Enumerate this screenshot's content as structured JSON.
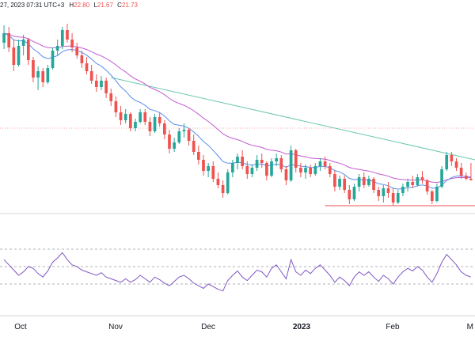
{
  "header": {
    "datetime": "27, 2023 07:31 UTC+3",
    "high_label": "H",
    "high_value": "22.80",
    "low_label": "L",
    "low_value": "21.67",
    "close_label": "C",
    "close_value": "21.73"
  },
  "colors": {
    "up": "#26a69a",
    "down": "#ef5350",
    "ma_fast": "#5b8def",
    "ma_slow": "#c45ad2",
    "trendline": "#6bc6b0",
    "support": "#ef5350",
    "rsi": "#7e57c2",
    "grid": "#9598a1",
    "axis_text": "#131722"
  },
  "chart_data": [
    {
      "type": "candlestick",
      "title": "",
      "x_tick_labels": [
        "Oct",
        "Nov",
        "Dec",
        "2023",
        "Feb",
        "M"
      ],
      "ylim": [
        20.0,
        32.0
      ],
      "grid": false,
      "overlays": [
        "moving-average-fast",
        "moving-average-slow",
        "descending-trendline",
        "support-line",
        "price-level-line"
      ],
      "candles": [
        [
          30.4,
          31.5,
          30.0,
          31.0
        ],
        [
          31.0,
          31.4,
          29.8,
          30.1
        ],
        [
          30.1,
          30.6,
          28.6,
          29.0
        ],
        [
          29.0,
          30.6,
          28.9,
          30.2
        ],
        [
          30.2,
          30.9,
          29.6,
          30.6
        ],
        [
          30.6,
          30.7,
          29.0,
          29.3
        ],
        [
          29.3,
          29.5,
          27.9,
          28.2
        ],
        [
          28.2,
          28.9,
          27.4,
          28.6
        ],
        [
          28.6,
          28.8,
          27.6,
          27.9
        ],
        [
          27.9,
          29.0,
          27.8,
          28.8
        ],
        [
          28.8,
          30.1,
          28.7,
          29.9
        ],
        [
          29.9,
          30.6,
          29.6,
          30.2
        ],
        [
          30.2,
          31.4,
          30.0,
          31.2
        ],
        [
          31.2,
          31.6,
          30.4,
          30.6
        ],
        [
          30.6,
          31.0,
          29.8,
          30.1
        ],
        [
          30.1,
          30.4,
          29.4,
          29.6
        ],
        [
          29.6,
          29.9,
          28.8,
          29.1
        ],
        [
          29.1,
          29.5,
          28.4,
          28.6
        ],
        [
          28.6,
          29.0,
          27.8,
          28.0
        ],
        [
          28.0,
          28.4,
          27.3,
          27.6
        ],
        [
          27.6,
          28.3,
          27.4,
          28.0
        ],
        [
          28.0,
          28.2,
          26.9,
          27.2
        ],
        [
          27.2,
          27.5,
          26.4,
          26.7
        ],
        [
          26.7,
          27.0,
          25.7,
          26.0
        ],
        [
          26.0,
          26.4,
          25.2,
          25.5
        ],
        [
          25.5,
          26.2,
          25.3,
          25.9
        ],
        [
          25.9,
          26.0,
          24.8,
          25.0
        ],
        [
          25.0,
          25.6,
          24.8,
          25.4
        ],
        [
          25.4,
          26.2,
          25.3,
          26.0
        ],
        [
          26.0,
          26.2,
          25.2,
          25.4
        ],
        [
          25.4,
          25.7,
          24.5,
          24.8
        ],
        [
          24.8,
          25.9,
          24.7,
          25.7
        ],
        [
          25.7,
          26.0,
          25.1,
          25.3
        ],
        [
          25.3,
          25.5,
          24.3,
          24.6
        ],
        [
          24.6,
          24.9,
          23.4,
          23.7
        ],
        [
          23.7,
          24.4,
          23.5,
          24.1
        ],
        [
          24.1,
          25.0,
          24.0,
          24.8
        ],
        [
          24.8,
          25.3,
          24.4,
          24.9
        ],
        [
          24.9,
          25.0,
          23.9,
          24.2
        ],
        [
          24.2,
          24.6,
          23.3,
          23.5
        ],
        [
          23.5,
          23.9,
          22.7,
          23.0
        ],
        [
          23.0,
          23.3,
          22.0,
          22.3
        ],
        [
          22.3,
          22.8,
          21.9,
          22.6
        ],
        [
          22.6,
          22.9,
          21.6,
          21.8
        ],
        [
          21.8,
          22.2,
          21.2,
          21.4
        ],
        [
          21.4,
          21.7,
          20.6,
          20.9
        ],
        [
          20.9,
          22.4,
          20.8,
          22.2
        ],
        [
          22.2,
          23.0,
          21.9,
          22.8
        ],
        [
          22.8,
          23.4,
          22.4,
          23.2
        ],
        [
          23.2,
          23.6,
          22.4,
          22.6
        ],
        [
          22.6,
          22.9,
          21.8,
          22.1
        ],
        [
          22.1,
          22.7,
          21.9,
          22.5
        ],
        [
          22.5,
          23.3,
          22.3,
          23.0
        ],
        [
          23.0,
          23.4,
          22.5,
          22.8
        ],
        [
          22.8,
          22.9,
          21.7,
          22.0
        ],
        [
          22.0,
          23.1,
          21.9,
          22.9
        ],
        [
          22.9,
          23.4,
          22.6,
          23.1
        ],
        [
          23.1,
          23.3,
          22.2,
          22.4
        ],
        [
          22.4,
          22.6,
          21.4,
          21.7
        ],
        [
          21.7,
          23.9,
          21.6,
          23.6
        ],
        [
          23.6,
          23.7,
          22.2,
          22.5
        ],
        [
          22.5,
          22.8,
          21.9,
          22.2
        ],
        [
          22.2,
          22.7,
          21.8,
          22.5
        ],
        [
          22.5,
          22.7,
          21.9,
          22.1
        ],
        [
          22.1,
          22.8,
          22.0,
          22.6
        ],
        [
          22.6,
          23.1,
          22.3,
          22.9
        ],
        [
          22.9,
          23.2,
          22.4,
          22.6
        ],
        [
          22.6,
          22.8,
          21.9,
          22.1
        ],
        [
          22.1,
          22.3,
          21.0,
          21.3
        ],
        [
          21.3,
          22.0,
          21.1,
          21.8
        ],
        [
          21.8,
          22.0,
          20.9,
          21.1
        ],
        [
          21.1,
          21.4,
          20.2,
          20.5
        ],
        [
          20.5,
          21.5,
          20.4,
          21.3
        ],
        [
          21.3,
          22.1,
          21.0,
          21.9
        ],
        [
          21.9,
          22.2,
          21.2,
          21.4
        ],
        [
          21.4,
          22.0,
          21.3,
          21.8
        ],
        [
          21.8,
          21.9,
          20.9,
          21.1
        ],
        [
          21.1,
          21.3,
          20.4,
          20.7
        ],
        [
          20.7,
          21.4,
          20.3,
          21.2
        ],
        [
          21.2,
          21.6,
          20.6,
          20.9
        ],
        [
          20.9,
          21.2,
          20.1,
          20.3
        ],
        [
          20.3,
          21.1,
          20.2,
          20.9
        ],
        [
          20.9,
          21.5,
          20.7,
          21.3
        ],
        [
          21.3,
          21.8,
          21.0,
          21.6
        ],
        [
          21.6,
          22.0,
          21.2,
          21.4
        ],
        [
          21.4,
          22.1,
          21.3,
          21.9
        ],
        [
          21.9,
          22.3,
          21.5,
          21.7
        ],
        [
          21.7,
          21.8,
          20.8,
          21.0
        ],
        [
          21.0,
          21.1,
          20.2,
          20.4
        ],
        [
          20.4,
          21.5,
          20.3,
          21.3
        ],
        [
          21.3,
          22.6,
          21.2,
          22.4
        ],
        [
          22.4,
          23.5,
          22.3,
          23.3
        ],
        [
          23.3,
          23.5,
          22.6,
          22.9
        ],
        [
          22.9,
          23.1,
          22.3,
          22.5
        ],
        [
          22.5,
          22.8,
          21.8,
          22.0
        ],
        [
          22.0,
          22.2,
          21.7,
          21.8
        ],
        [
          21.8,
          22.8,
          21.67,
          21.73
        ]
      ]
    },
    {
      "type": "line",
      "title": "",
      "series": [
        {
          "values": [
            58,
            52,
            46,
            40,
            44,
            50,
            48,
            42,
            38,
            45,
            55,
            60,
            66,
            58,
            52,
            50,
            46,
            44,
            42,
            40,
            43,
            38,
            36,
            34,
            32,
            36,
            32,
            35,
            40,
            36,
            32,
            38,
            35,
            31,
            28,
            33,
            38,
            40,
            36,
            31,
            28,
            25,
            30,
            27,
            24,
            22,
            34,
            40,
            45,
            38,
            34,
            40,
            46,
            44,
            38,
            48,
            52,
            44,
            36,
            58,
            44,
            40,
            46,
            42,
            48,
            52,
            46,
            40,
            32,
            38,
            34,
            28,
            38,
            44,
            40,
            44,
            38,
            33,
            40,
            36,
            30,
            38,
            44,
            48,
            45,
            50,
            46,
            38,
            32,
            42,
            55,
            64,
            58,
            52,
            44,
            40,
            38
          ]
        }
      ],
      "ylim": [
        0,
        100
      ],
      "reference_lines": [
        70,
        50,
        30
      ],
      "grid": false
    }
  ]
}
